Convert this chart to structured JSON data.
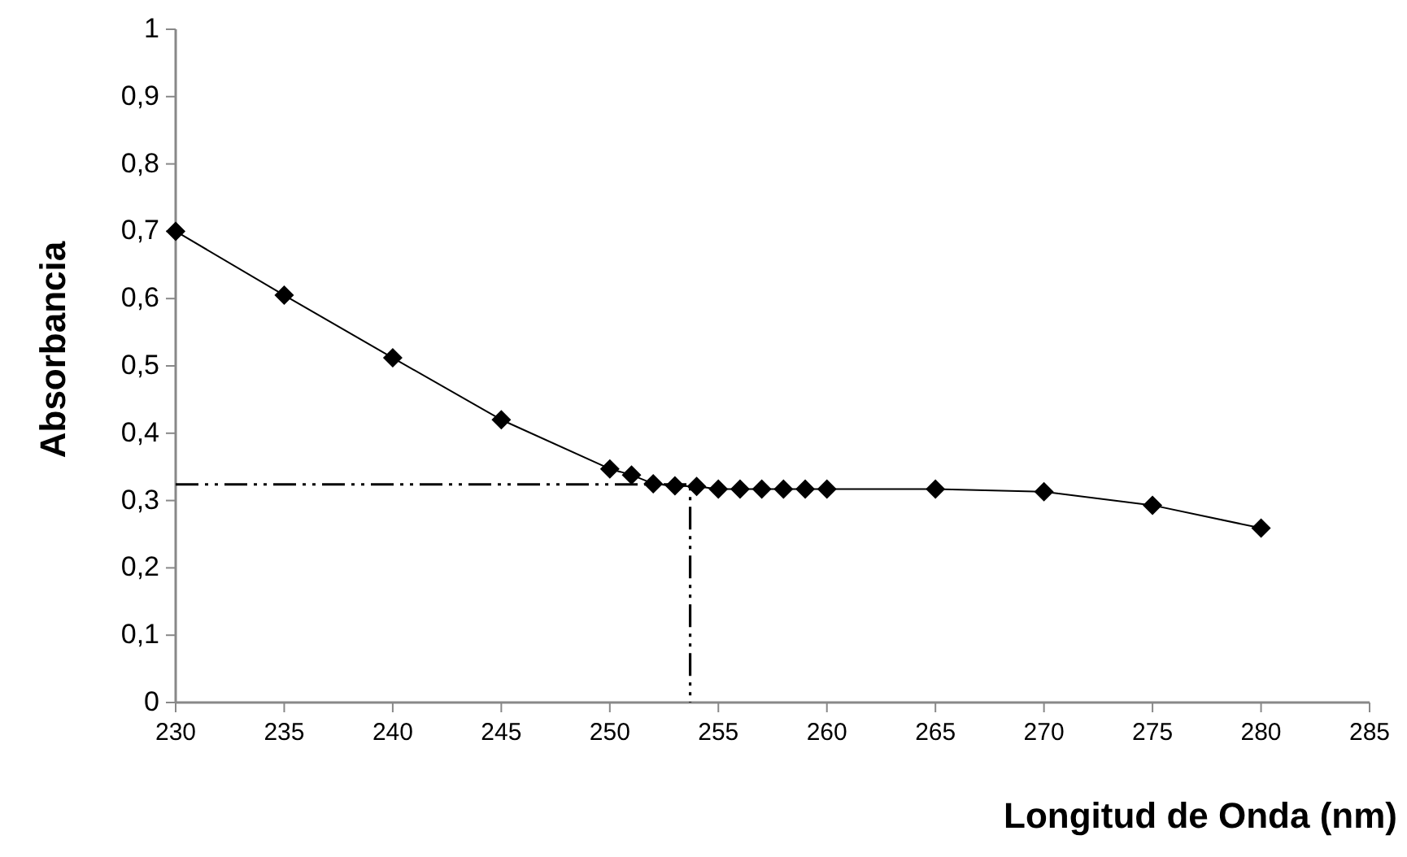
{
  "chart_data": {
    "type": "line",
    "xlabel": "Longitud de Onda (nm)",
    "ylabel": "Absorbancia",
    "xlim": [
      230,
      285
    ],
    "xticks": [
      230,
      235,
      240,
      245,
      250,
      255,
      260,
      265,
      270,
      275,
      280,
      285
    ],
    "ylim": [
      0,
      1
    ],
    "yticks": [
      0,
      {
        "value": 0.1,
        "label": "0,1"
      },
      {
        "value": 0.2,
        "label": "0,2"
      },
      {
        "value": 0.3,
        "label": "0,3"
      },
      {
        "value": 0.4,
        "label": "0,4"
      },
      {
        "value": 0.5,
        "label": "0,5"
      },
      {
        "value": 0.6,
        "label": "0,6"
      },
      {
        "value": 0.7,
        "label": "0,7"
      },
      {
        "value": 0.8,
        "label": "0,8"
      },
      {
        "value": 0.9,
        "label": "0,9"
      },
      1
    ],
    "grid": false,
    "series": [
      {
        "color": "#000000",
        "marker": "diamond",
        "line_style": "solid",
        "x": [
          230,
          235,
          240,
          245,
          250,
          251,
          252,
          253,
          254,
          255,
          256,
          257,
          258,
          259,
          260,
          265,
          270,
          275,
          280
        ],
        "values": [
          0.7,
          0.605,
          0.512,
          0.42,
          0.347,
          0.338,
          0.325,
          0.322,
          0.321,
          0.317,
          0.317,
          0.317,
          0.317,
          0.317,
          0.317,
          0.317,
          0.313,
          0.293,
          0.259
        ]
      },
      {
        "color": "#000000",
        "marker": "none",
        "line_style": "dashed",
        "x": [
          230,
          253.7,
          253.7
        ],
        "values": [
          0.324,
          0.324,
          0
        ]
      }
    ]
  }
}
